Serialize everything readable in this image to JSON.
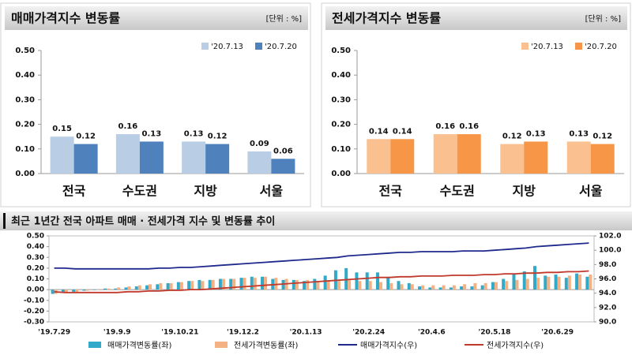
{
  "chart_data": [
    {
      "type": "bar",
      "title": "매매가격지수 변동률",
      "unit": "[단위 : %]",
      "categories": [
        "전국",
        "수도권",
        "지방",
        "서울"
      ],
      "series": [
        {
          "name": "'20.7.13",
          "color": "#b9cde5",
          "values": [
            0.15,
            0.16,
            0.13,
            0.09
          ]
        },
        {
          "name": "'20.7.20",
          "color": "#4f81bd",
          "values": [
            0.12,
            0.13,
            0.12,
            0.06
          ]
        }
      ],
      "ylim": [
        0,
        0.5
      ],
      "yticks": [
        {
          "value": 0,
          "label": "0.00"
        },
        {
          "value": 0.1,
          "label": "0.10"
        },
        {
          "value": 0.2,
          "label": "0.20"
        },
        {
          "value": 0.3,
          "label": "0.30"
        },
        {
          "value": 0.4,
          "label": "0.40"
        },
        {
          "value": 0.5,
          "label": "0.50"
        }
      ],
      "grid": false,
      "legend": "top-right"
    },
    {
      "type": "bar",
      "title": "전세가격지수 변동률",
      "unit": "[단위 : %]",
      "categories": [
        "전국",
        "수도권",
        "지방",
        "서울"
      ],
      "series": [
        {
          "name": "'20.7.13",
          "color": "#fac090",
          "values": [
            0.14,
            0.16,
            0.12,
            0.13
          ]
        },
        {
          "name": "'20.7.20",
          "color": "#f79646",
          "values": [
            0.14,
            0.16,
            0.13,
            0.12
          ]
        }
      ],
      "ylim": [
        0,
        0.5
      ],
      "yticks": [
        {
          "value": 0,
          "label": "0.00"
        },
        {
          "value": 0.1,
          "label": "0.10"
        },
        {
          "value": 0.2,
          "label": "0.20"
        },
        {
          "value": 0.3,
          "label": "0.30"
        },
        {
          "value": 0.4,
          "label": "0.40"
        },
        {
          "value": 0.5,
          "label": "0.50"
        }
      ],
      "grid": false,
      "legend": "top-right"
    },
    {
      "type": "combo",
      "title": "최근 1년간 전국 아파트 매매 · 전세가격 지수 및 변동률 추이",
      "categories": [
        "'19.7.29",
        null,
        null,
        null,
        null,
        null,
        "'19.9.9",
        null,
        null,
        null,
        null,
        null,
        "'19.10.21",
        null,
        null,
        null,
        null,
        null,
        "'19.12.2",
        null,
        null,
        null,
        null,
        null,
        "'20.1.13",
        null,
        null,
        null,
        null,
        null,
        "'20.2.24",
        null,
        null,
        null,
        null,
        null,
        "'20.4.6",
        null,
        null,
        null,
        null,
        null,
        "'20.5.18",
        null,
        null,
        null,
        null,
        null,
        "'20.6.29",
        null,
        null,
        null
      ],
      "series": [
        {
          "name": "매매가격변동률(좌)",
          "type": "bar",
          "color": "#31a9c9",
          "values": [
            -0.04,
            -0.03,
            -0.02,
            -0.01,
            0.0,
            0.01,
            0.01,
            0.02,
            0.03,
            0.04,
            0.05,
            0.06,
            0.07,
            0.08,
            0.09,
            0.09,
            0.1,
            0.1,
            0.11,
            0.12,
            0.12,
            0.1,
            0.09,
            0.09,
            0.08,
            0.1,
            0.13,
            0.18,
            0.2,
            0.16,
            0.16,
            0.16,
            0.11,
            0.08,
            0.06,
            0.03,
            0.02,
            0.02,
            0.02,
            0.03,
            0.03,
            0.04,
            0.07,
            0.1,
            0.15,
            0.17,
            0.22,
            0.13,
            0.14,
            0.11,
            0.15,
            0.12
          ]
        },
        {
          "name": "전세가격변동률(좌)",
          "type": "bar",
          "color": "#f4b183",
          "values": [
            -0.04,
            -0.03,
            -0.02,
            -0.01,
            0.0,
            0.01,
            0.02,
            0.03,
            0.04,
            0.05,
            0.06,
            0.06,
            0.07,
            0.08,
            0.08,
            0.09,
            0.1,
            0.1,
            0.11,
            0.11,
            0.12,
            0.11,
            0.1,
            0.09,
            0.09,
            0.08,
            0.08,
            0.08,
            0.09,
            0.08,
            0.08,
            0.07,
            0.06,
            0.05,
            0.05,
            0.04,
            0.04,
            0.04,
            0.04,
            0.05,
            0.06,
            0.06,
            0.07,
            0.08,
            0.09,
            0.1,
            0.11,
            0.12,
            0.12,
            0.13,
            0.14,
            0.14
          ]
        },
        {
          "name": "매매가격지수(우)",
          "type": "line",
          "axis": "y2",
          "color": "#1f2a8c",
          "values": [
            97.5,
            97.5,
            97.4,
            97.4,
            97.4,
            97.4,
            97.4,
            97.4,
            97.4,
            97.4,
            97.5,
            97.5,
            97.6,
            97.6,
            97.7,
            97.8,
            97.9,
            98.0,
            98.1,
            98.2,
            98.3,
            98.4,
            98.5,
            98.6,
            98.7,
            98.8,
            98.9,
            99.0,
            99.2,
            99.3,
            99.4,
            99.5,
            99.6,
            99.7,
            99.7,
            99.8,
            99.8,
            99.8,
            99.8,
            99.9,
            99.9,
            99.9,
            100.0,
            100.1,
            100.2,
            100.3,
            100.5,
            100.6,
            100.7,
            100.8,
            100.9,
            101.0
          ]
        },
        {
          "name": "전세가격지수(우)",
          "type": "line",
          "axis": "y2",
          "color": "#c0392b",
          "values": [
            94.2,
            94.1,
            94.1,
            94.1,
            94.1,
            94.1,
            94.1,
            94.2,
            94.2,
            94.3,
            94.3,
            94.4,
            94.4,
            94.5,
            94.5,
            94.6,
            94.7,
            94.8,
            94.9,
            95.0,
            95.1,
            95.2,
            95.3,
            95.4,
            95.5,
            95.6,
            95.7,
            95.8,
            95.9,
            96.0,
            96.1,
            96.2,
            96.2,
            96.3,
            96.3,
            96.4,
            96.4,
            96.4,
            96.5,
            96.5,
            96.5,
            96.6,
            96.6,
            96.7,
            96.7,
            96.8,
            96.8,
            96.9,
            96.9,
            97.0,
            97.0,
            97.1
          ]
        }
      ],
      "ylim": [
        -0.3,
        0.5
      ],
      "yticks": [
        {
          "value": -0.3,
          "label": "-0.30"
        },
        {
          "value": -0.2,
          "label": "-0.20"
        },
        {
          "value": -0.1,
          "label": "-0.10"
        },
        {
          "value": 0,
          "label": "0.00"
        },
        {
          "value": 0.1,
          "label": "0.10"
        },
        {
          "value": 0.2,
          "label": "0.20"
        },
        {
          "value": 0.3,
          "label": "0.30"
        },
        {
          "value": 0.4,
          "label": "0.40"
        },
        {
          "value": 0.5,
          "label": "0.50"
        }
      ],
      "y2lim": [
        90,
        102
      ],
      "y2ticks": [
        {
          "value": 90,
          "label": "90.0"
        },
        {
          "value": 92,
          "label": "92.0"
        },
        {
          "value": 94,
          "label": "94.0"
        },
        {
          "value": 96,
          "label": "96.0"
        },
        {
          "value": 98,
          "label": "98.0"
        },
        {
          "value": 100,
          "label": "100.0"
        },
        {
          "value": 102,
          "label": "102.0"
        }
      ],
      "grid": false,
      "legend": "bottom"
    }
  ]
}
